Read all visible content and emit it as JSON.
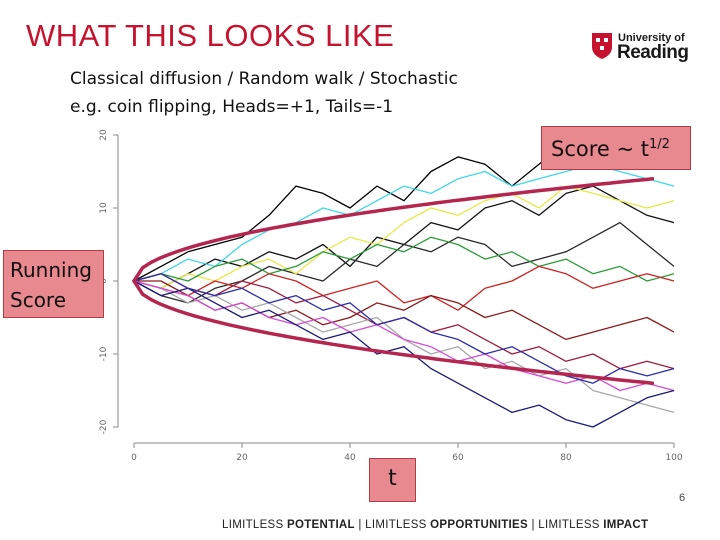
{
  "slide": {
    "title": "WHAT THIS LOOKS LIKE",
    "subtitle_line1": "Classical diffusion / Random walk / Stochastic",
    "subtitle_line2": "e.g. coin flipping, Heads=+1, Tails=-1",
    "page_number": "6"
  },
  "logo": {
    "line1": "University of",
    "line2": "Reading"
  },
  "callouts": {
    "score_text": "Score ~ t",
    "score_exponent": "1/2",
    "running_line1": "Running",
    "running_line2": "Score",
    "t_label": "t"
  },
  "footer": {
    "p1": "LIMITLESS ",
    "b1": "POTENTIAL",
    "p2": " | LIMITLESS ",
    "b2": "OPPORTUNITIES",
    "p3": " | LIMITLESS ",
    "b3": "IMPACT"
  },
  "colors": {
    "title": "#c4122f",
    "envelope": "#b4264f",
    "callout_fill": "#e8898f"
  },
  "chart_data": {
    "type": "line",
    "xlim": [
      0,
      100
    ],
    "ylim": [
      -20,
      20
    ],
    "x_ticks": [
      0,
      20,
      40,
      60,
      80,
      100
    ],
    "y_ticks": [
      -20,
      -10,
      0,
      10,
      20
    ],
    "x_tick_labels": [
      "0",
      "20",
      "40",
      "60",
      "80",
      "100"
    ],
    "y_tick_labels": [
      "-20",
      "-10",
      "0",
      "10",
      "20"
    ],
    "grid": false,
    "envelope": {
      "label": "Score ~ t^1/2",
      "color": "#b4264f",
      "x_start": 0,
      "x_end": 96,
      "y_end_upper": 14,
      "y_end_lower": -14
    },
    "series": [
      {
        "color": "#000000",
        "points": [
          [
            0,
            0
          ],
          [
            5,
            2
          ],
          [
            10,
            4
          ],
          [
            15,
            5
          ],
          [
            20,
            6
          ],
          [
            25,
            9
          ],
          [
            30,
            13
          ],
          [
            35,
            12
          ],
          [
            40,
            10
          ],
          [
            45,
            13
          ],
          [
            50,
            11
          ],
          [
            55,
            15
          ],
          [
            60,
            17
          ],
          [
            65,
            16
          ],
          [
            70,
            13
          ],
          [
            75,
            16
          ],
          [
            80,
            19
          ],
          [
            85,
            20
          ],
          [
            90,
            18
          ],
          [
            95,
            17
          ],
          [
            100,
            16
          ]
        ]
      },
      {
        "color": "#111111",
        "points": [
          [
            0,
            0
          ],
          [
            5,
            -1
          ],
          [
            10,
            1
          ],
          [
            15,
            3
          ],
          [
            20,
            2
          ],
          [
            25,
            4
          ],
          [
            30,
            3
          ],
          [
            35,
            5
          ],
          [
            40,
            2
          ],
          [
            45,
            6
          ],
          [
            50,
            5
          ],
          [
            55,
            8
          ],
          [
            60,
            7
          ],
          [
            65,
            10
          ],
          [
            70,
            11
          ],
          [
            75,
            9
          ],
          [
            80,
            12
          ],
          [
            85,
            13
          ],
          [
            90,
            11
          ],
          [
            95,
            9
          ],
          [
            100,
            8
          ]
        ]
      },
      {
        "color": "#2a2a2a",
        "points": [
          [
            0,
            0
          ],
          [
            5,
            -2
          ],
          [
            10,
            -3
          ],
          [
            15,
            -1
          ],
          [
            20,
            0
          ],
          [
            25,
            2
          ],
          [
            30,
            1
          ],
          [
            35,
            0
          ],
          [
            40,
            3
          ],
          [
            45,
            2
          ],
          [
            50,
            5
          ],
          [
            55,
            4
          ],
          [
            60,
            6
          ],
          [
            65,
            5
          ],
          [
            70,
            2
          ],
          [
            75,
            3
          ],
          [
            80,
            4
          ],
          [
            85,
            6
          ],
          [
            90,
            8
          ],
          [
            95,
            5
          ],
          [
            100,
            2
          ]
        ]
      },
      {
        "color": "#3fd8e6",
        "points": [
          [
            0,
            0
          ],
          [
            5,
            1
          ],
          [
            10,
            3
          ],
          [
            15,
            2
          ],
          [
            20,
            5
          ],
          [
            25,
            7
          ],
          [
            30,
            8
          ],
          [
            35,
            10
          ],
          [
            40,
            9
          ],
          [
            45,
            11
          ],
          [
            50,
            13
          ],
          [
            55,
            12
          ],
          [
            60,
            14
          ],
          [
            65,
            15
          ],
          [
            70,
            13
          ],
          [
            75,
            14
          ],
          [
            80,
            15
          ],
          [
            85,
            16
          ],
          [
            90,
            15
          ],
          [
            95,
            14
          ],
          [
            100,
            13
          ]
        ]
      },
      {
        "color": "#e8e84a",
        "points": [
          [
            0,
            0
          ],
          [
            5,
            -1
          ],
          [
            10,
            1
          ],
          [
            15,
            0
          ],
          [
            20,
            2
          ],
          [
            25,
            3
          ],
          [
            30,
            1
          ],
          [
            35,
            4
          ],
          [
            40,
            6
          ],
          [
            45,
            5
          ],
          [
            50,
            8
          ],
          [
            55,
            10
          ],
          [
            60,
            9
          ],
          [
            65,
            11
          ],
          [
            70,
            12
          ],
          [
            75,
            10
          ],
          [
            80,
            13
          ],
          [
            85,
            12
          ],
          [
            90,
            11
          ],
          [
            95,
            10
          ],
          [
            100,
            11
          ]
        ]
      },
      {
        "color": "#2e9b3a",
        "points": [
          [
            0,
            0
          ],
          [
            5,
            1
          ],
          [
            10,
            0
          ],
          [
            15,
            2
          ],
          [
            20,
            3
          ],
          [
            25,
            1
          ],
          [
            30,
            2
          ],
          [
            35,
            4
          ],
          [
            40,
            3
          ],
          [
            45,
            5
          ],
          [
            50,
            4
          ],
          [
            55,
            6
          ],
          [
            60,
            5
          ],
          [
            65,
            3
          ],
          [
            70,
            4
          ],
          [
            75,
            2
          ],
          [
            80,
            3
          ],
          [
            85,
            1
          ],
          [
            90,
            2
          ],
          [
            95,
            0
          ],
          [
            100,
            1
          ]
        ]
      },
      {
        "color": "#cc2222",
        "points": [
          [
            0,
            0
          ],
          [
            5,
            -1
          ],
          [
            10,
            -2
          ],
          [
            15,
            0
          ],
          [
            20,
            -1
          ],
          [
            25,
            1
          ],
          [
            30,
            0
          ],
          [
            35,
            -2
          ],
          [
            40,
            -1
          ],
          [
            45,
            0
          ],
          [
            50,
            -3
          ],
          [
            55,
            -2
          ],
          [
            60,
            -4
          ],
          [
            65,
            -1
          ],
          [
            70,
            0
          ],
          [
            75,
            2
          ],
          [
            80,
            1
          ],
          [
            85,
            -1
          ],
          [
            90,
            0
          ],
          [
            95,
            1
          ],
          [
            100,
            0
          ]
        ]
      },
      {
        "color": "#8b1a1a",
        "points": [
          [
            0,
            0
          ],
          [
            5,
            0
          ],
          [
            10,
            -2
          ],
          [
            15,
            -4
          ],
          [
            20,
            -3
          ],
          [
            25,
            -5
          ],
          [
            30,
            -4
          ],
          [
            35,
            -6
          ],
          [
            40,
            -5
          ],
          [
            45,
            -3
          ],
          [
            50,
            -4
          ],
          [
            55,
            -2
          ],
          [
            60,
            -3
          ],
          [
            65,
            -5
          ],
          [
            70,
            -4
          ],
          [
            75,
            -6
          ],
          [
            80,
            -8
          ],
          [
            85,
            -7
          ],
          [
            90,
            -6
          ],
          [
            95,
            -5
          ],
          [
            100,
            -7
          ]
        ]
      },
      {
        "color": "#a01c3c",
        "points": [
          [
            0,
            0
          ],
          [
            5,
            1
          ],
          [
            10,
            -1
          ],
          [
            15,
            -2
          ],
          [
            20,
            0
          ],
          [
            25,
            -1
          ],
          [
            30,
            -3
          ],
          [
            35,
            -2
          ],
          [
            40,
            -4
          ],
          [
            45,
            -6
          ],
          [
            50,
            -5
          ],
          [
            55,
            -7
          ],
          [
            60,
            -6
          ],
          [
            65,
            -8
          ],
          [
            70,
            -10
          ],
          [
            75,
            -9
          ],
          [
            80,
            -11
          ],
          [
            85,
            -10
          ],
          [
            90,
            -12
          ],
          [
            95,
            -11
          ],
          [
            100,
            -12
          ]
        ]
      },
      {
        "color": "#a8a8a8",
        "points": [
          [
            0,
            0
          ],
          [
            5,
            -1
          ],
          [
            10,
            -3
          ],
          [
            15,
            -2
          ],
          [
            20,
            -4
          ],
          [
            25,
            -3
          ],
          [
            30,
            -5
          ],
          [
            35,
            -7
          ],
          [
            40,
            -6
          ],
          [
            45,
            -5
          ],
          [
            50,
            -8
          ],
          [
            55,
            -10
          ],
          [
            60,
            -9
          ],
          [
            65,
            -12
          ],
          [
            70,
            -11
          ],
          [
            75,
            -13
          ],
          [
            80,
            -12
          ],
          [
            85,
            -15
          ],
          [
            90,
            -16
          ],
          [
            95,
            -17
          ],
          [
            100,
            -18
          ]
        ]
      },
      {
        "color": "#d54cd5",
        "points": [
          [
            0,
            0
          ],
          [
            5,
            -1
          ],
          [
            10,
            -2
          ],
          [
            15,
            -4
          ],
          [
            20,
            -3
          ],
          [
            25,
            -5
          ],
          [
            30,
            -6
          ],
          [
            35,
            -5
          ],
          [
            40,
            -7
          ],
          [
            45,
            -6
          ],
          [
            50,
            -8
          ],
          [
            55,
            -9
          ],
          [
            60,
            -11
          ],
          [
            65,
            -10
          ],
          [
            70,
            -12
          ],
          [
            75,
            -13
          ],
          [
            80,
            -14
          ],
          [
            85,
            -13
          ],
          [
            90,
            -15
          ],
          [
            95,
            -14
          ],
          [
            100,
            -15
          ]
        ]
      },
      {
        "color": "#1a1a7a",
        "points": [
          [
            0,
            0
          ],
          [
            5,
            -2
          ],
          [
            10,
            -1
          ],
          [
            15,
            -3
          ],
          [
            20,
            -5
          ],
          [
            25,
            -4
          ],
          [
            30,
            -6
          ],
          [
            35,
            -8
          ],
          [
            40,
            -7
          ],
          [
            45,
            -10
          ],
          [
            50,
            -9
          ],
          [
            55,
            -12
          ],
          [
            60,
            -14
          ],
          [
            65,
            -16
          ],
          [
            70,
            -18
          ],
          [
            75,
            -17
          ],
          [
            80,
            -19
          ],
          [
            85,
            -20
          ],
          [
            90,
            -18
          ],
          [
            95,
            -16
          ],
          [
            100,
            -15
          ]
        ]
      },
      {
        "color": "#2d2daa",
        "points": [
          [
            0,
            0
          ],
          [
            5,
            1
          ],
          [
            10,
            -1
          ],
          [
            15,
            -2
          ],
          [
            20,
            -1
          ],
          [
            25,
            -3
          ],
          [
            30,
            -2
          ],
          [
            35,
            -4
          ],
          [
            40,
            -3
          ],
          [
            45,
            -6
          ],
          [
            50,
            -5
          ],
          [
            55,
            -7
          ],
          [
            60,
            -8
          ],
          [
            65,
            -10
          ],
          [
            70,
            -9
          ],
          [
            75,
            -11
          ],
          [
            80,
            -13
          ],
          [
            85,
            -14
          ],
          [
            90,
            -12
          ],
          [
            95,
            -13
          ],
          [
            100,
            -12
          ]
        ]
      }
    ]
  }
}
